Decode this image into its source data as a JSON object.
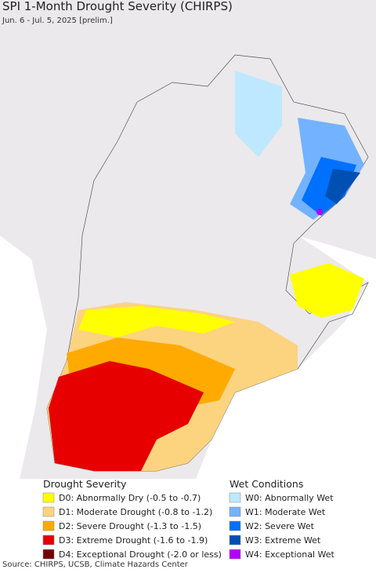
{
  "header": {
    "title": "SPI 1-Month Drought Severity (CHIRPS)",
    "subtitle": "Jun. 6 - Jul. 5, 2025 [prelim.]"
  },
  "legend": [
    {
      "title": "Drought Severity",
      "items": [
        {
          "label": "D0: Abnormally Dry (-0.5 to -0.7)",
          "color": "#ffff00"
        },
        {
          "label": "D1: Moderate Drought (-0.8 to -1.2)",
          "color": "#fcd37f"
        },
        {
          "label": "D2: Severe Drought (-1.3 to -1.5)",
          "color": "#ffaa00"
        },
        {
          "label": "D3: Extreme Drought (-1.6 to -1.9)",
          "color": "#e60000"
        },
        {
          "label": "D4: Exceptional Drought (-2.0 or less)",
          "color": "#730000"
        }
      ]
    },
    {
      "title": "Wet Conditions",
      "items": [
        {
          "label": "W0: Abnormally Wet",
          "color": "#bee8ff"
        },
        {
          "label": "W1: Moderate Wet",
          "color": "#73b2ff"
        },
        {
          "label": "W2: Severe Wet",
          "color": "#0070ff"
        },
        {
          "label": "W3: Extreme Wet",
          "color": "#0050b4"
        },
        {
          "label": "W4: Exceptional Wet",
          "color": "#b400ff"
        }
      ]
    }
  ],
  "source": "Source: CHIRPS, UCSB, Climate Hazards Center"
}
